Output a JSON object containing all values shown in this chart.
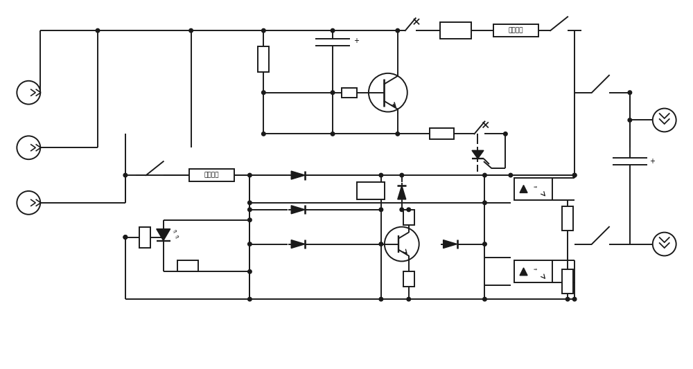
{
  "bg": "#ffffff",
  "lc": "#1a1a1a",
  "lw": 1.4,
  "figsize": [
    10.0,
    5.33
  ],
  "label_top": "限流电路",
  "label_bot": "限流电路"
}
